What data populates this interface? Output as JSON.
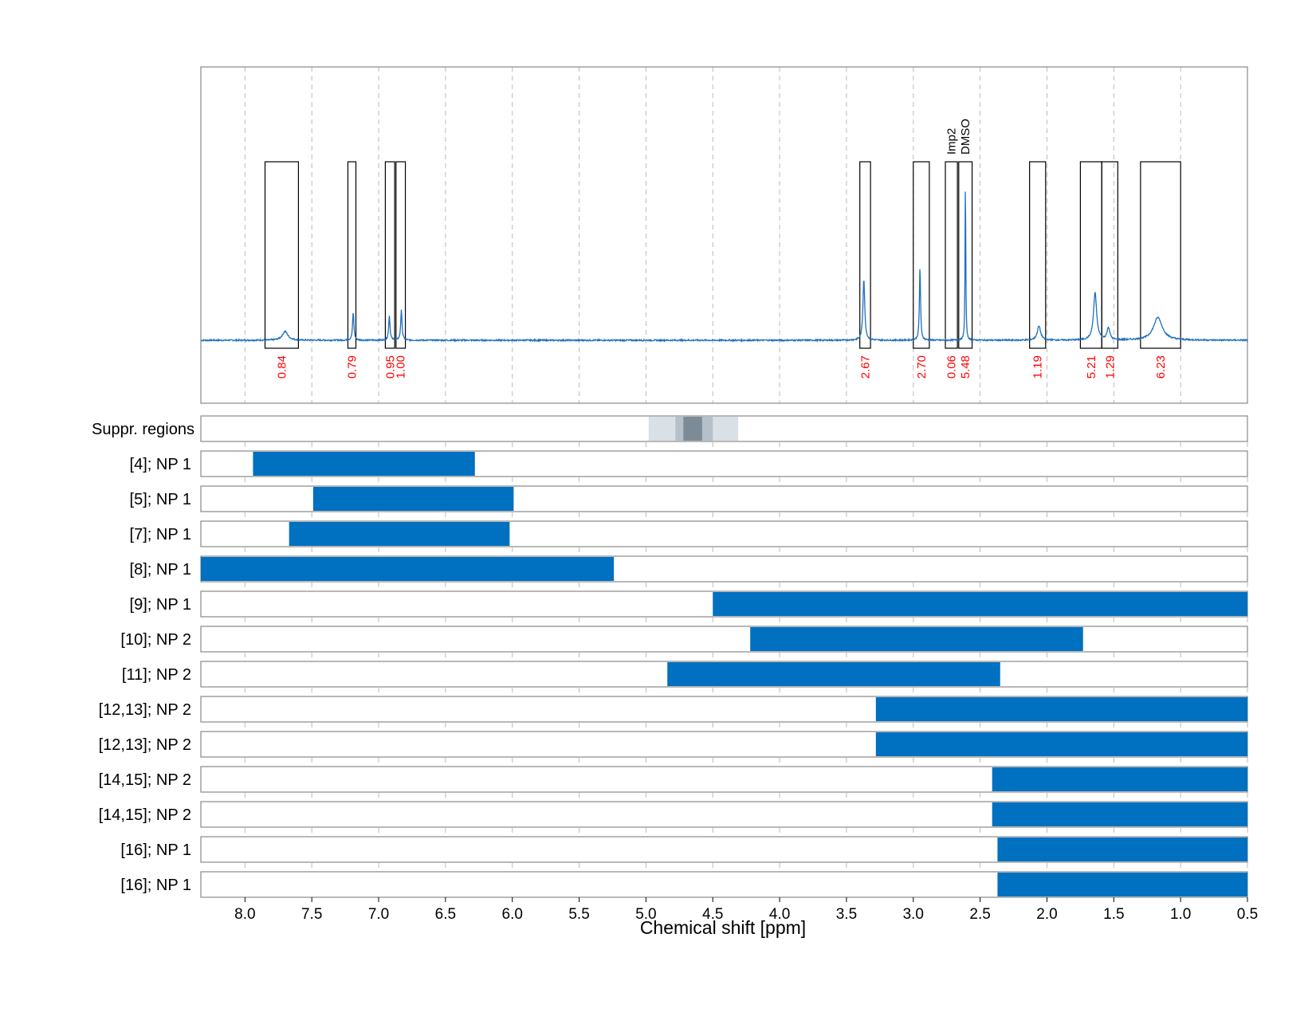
{
  "chart_data": {
    "type": "nmr-spectrum-with-ranges",
    "xlabel": "Chemical shift [ppm]",
    "x_reversed": true,
    "xlim": [
      8.33,
      0.5
    ],
    "x_ticks": [
      8.0,
      7.5,
      7.0,
      6.5,
      6.0,
      5.5,
      5.0,
      4.5,
      4.0,
      3.5,
      3.0,
      2.5,
      2.0,
      1.5,
      1.0,
      0.5
    ],
    "x_tick_labels": [
      "8.0",
      "7.5",
      "7.0",
      "6.5",
      "6.0",
      "5.5",
      "5.0",
      "4.5",
      "4.0",
      "3.5",
      "3.0",
      "2.5",
      "2.0",
      "1.5",
      "1.0",
      "0.5"
    ],
    "grid": "dashed vertical",
    "spectrum_color": "#1f6fbf",
    "range_bar_color": "#0070c0",
    "integral_label_color": "#ff0000",
    "peaks": [
      {
        "center": 7.7,
        "height": 0.05,
        "width": 0.025
      },
      {
        "center": 7.19,
        "height": 0.16,
        "width": 0.006
      },
      {
        "center": 6.92,
        "height": 0.14,
        "width": 0.006
      },
      {
        "center": 6.83,
        "height": 0.17,
        "width": 0.006
      },
      {
        "center": 3.37,
        "height": 0.35,
        "width": 0.008
      },
      {
        "center": 2.95,
        "height": 0.42,
        "width": 0.005
      },
      {
        "center": 2.61,
        "height": 0.95,
        "width": 0.003
      },
      {
        "center": 2.06,
        "height": 0.08,
        "width": 0.015
      },
      {
        "center": 1.64,
        "height": 0.27,
        "width": 0.014
      },
      {
        "center": 1.54,
        "height": 0.07,
        "width": 0.012
      },
      {
        "center": 1.17,
        "height": 0.13,
        "width": 0.04
      }
    ],
    "integration_regions": [
      {
        "from": 7.85,
        "to": 7.6,
        "label": "0.84"
      },
      {
        "from": 7.23,
        "to": 7.17,
        "label": "0.79"
      },
      {
        "from": 6.95,
        "to": 6.88,
        "label": "0.95"
      },
      {
        "from": 6.87,
        "to": 6.8,
        "label": "1.00"
      },
      {
        "from": 3.4,
        "to": 3.32,
        "label": "2.67"
      },
      {
        "from": 3.0,
        "to": 2.88,
        "label": "2.70"
      },
      {
        "from": 2.76,
        "to": 2.67,
        "label": "0.06",
        "name": "Imp2"
      },
      {
        "from": 2.66,
        "to": 2.56,
        "label": "5.48",
        "name": "DMSO"
      },
      {
        "from": 2.13,
        "to": 2.01,
        "label": "1.19"
      },
      {
        "from": 1.75,
        "to": 1.59,
        "label": "5.21"
      },
      {
        "from": 1.59,
        "to": 1.47,
        "label": "1.29"
      },
      {
        "from": 1.3,
        "to": 1.0,
        "label": "6.23"
      }
    ],
    "suppressed_regions": [
      {
        "from": 4.98,
        "to": 4.31,
        "shade": "#d9e0e6"
      },
      {
        "from": 4.78,
        "to": 4.5,
        "shade": "#b4c0ca"
      },
      {
        "from": 4.72,
        "to": 4.58,
        "shade": "#7d8b96"
      }
    ],
    "suppressed_label": "Suppr. regions",
    "ranges": [
      {
        "label": "[4]; NP 1",
        "from": 7.94,
        "to": 6.28
      },
      {
        "label": "[5]; NP 1",
        "from": 7.49,
        "to": 5.99
      },
      {
        "label": "[7]; NP 1",
        "from": 7.67,
        "to": 6.02
      },
      {
        "label": "[8]; NP 1",
        "from": 8.33,
        "to": 5.24
      },
      {
        "label": "[9]; NP 1",
        "from": 4.5,
        "to": 0.5
      },
      {
        "label": "[10]; NP 2",
        "from": 4.22,
        "to": 1.73
      },
      {
        "label": "[11]; NP 2",
        "from": 4.84,
        "to": 2.35
      },
      {
        "label": "[12,13]; NP 2",
        "from": 3.28,
        "to": 0.5
      },
      {
        "label": "[12,13]; NP 2",
        "from": 3.28,
        "to": 0.5
      },
      {
        "label": "[14,15]; NP 2",
        "from": 2.41,
        "to": 0.5
      },
      {
        "label": "[14,15]; NP 2",
        "from": 2.41,
        "to": 0.5
      },
      {
        "label": "[16]; NP 1",
        "from": 2.37,
        "to": 0.5
      },
      {
        "label": "[16]; NP 1",
        "from": 2.37,
        "to": 0.5
      }
    ]
  }
}
